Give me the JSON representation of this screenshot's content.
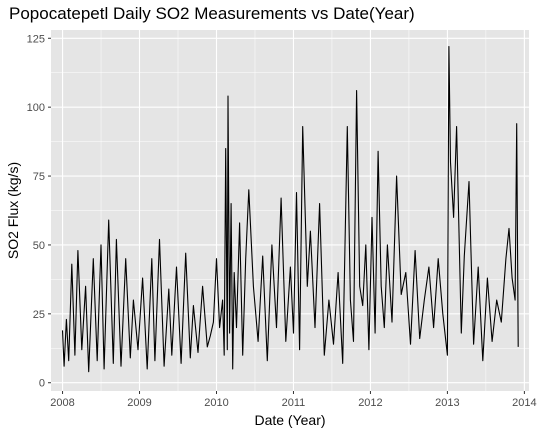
{
  "chart_data": {
    "type": "line",
    "title": "Popocatepetl Daily SO2 Measurements vs Date(Year)",
    "xlabel": "Date (Year)",
    "ylabel": "SO2 Flux (kg/s)",
    "xlim": [
      2007.85,
      2014.06
    ],
    "ylim": [
      -3,
      128
    ],
    "x_ticks": [
      2008,
      2009,
      2010,
      2011,
      2012,
      2013,
      2014
    ],
    "x_tick_labels": [
      "2008",
      "2009",
      "2010",
      "2011",
      "2012",
      "2013",
      "2014"
    ],
    "y_ticks": [
      0,
      25,
      50,
      75,
      100,
      125
    ],
    "y_tick_labels": [
      "0",
      "25",
      "50",
      "75",
      "100",
      "125"
    ],
    "grid": true,
    "background": "#e5e5e5",
    "grid_color": "#ffffff",
    "line_color": "#000000",
    "series": [
      {
        "x": [
          2008.0,
          2008.02,
          2008.05,
          2008.08,
          2008.12,
          2008.16,
          2008.2,
          2008.25,
          2008.3,
          2008.34,
          2008.4,
          2008.45,
          2008.5,
          2008.54,
          2008.6,
          2008.66,
          2008.7,
          2008.76,
          2008.82,
          2008.88,
          2008.92,
          2008.98,
          2009.04,
          2009.1,
          2009.16,
          2009.2,
          2009.26,
          2009.32,
          2009.38,
          2009.42,
          2009.48,
          2009.54,
          2009.6,
          2009.66,
          2009.7,
          2009.76,
          2009.82,
          2009.88,
          2009.92,
          2009.96,
          2010.0,
          2010.04,
          2010.08,
          2010.1,
          2010.12,
          2010.14,
          2010.15,
          2010.17,
          2010.19,
          2010.21,
          2010.23,
          2010.26,
          2010.3,
          2010.34,
          2010.38,
          2010.42,
          2010.48,
          2010.54,
          2010.6,
          2010.66,
          2010.72,
          2010.78,
          2010.84,
          2010.9,
          2010.96,
          2011.0,
          2011.04,
          2011.08,
          2011.12,
          2011.18,
          2011.22,
          2011.28,
          2011.34,
          2011.4,
          2011.46,
          2011.52,
          2011.58,
          2011.64,
          2011.7,
          2011.74,
          2011.78,
          2011.82,
          2011.86,
          2011.9,
          2011.94,
          2011.98,
          2012.02,
          2012.06,
          2012.1,
          2012.14,
          2012.18,
          2012.22,
          2012.28,
          2012.34,
          2012.4,
          2012.46,
          2012.52,
          2012.58,
          2012.64,
          2012.7,
          2012.76,
          2012.82,
          2012.88,
          2012.94,
          2013.0,
          2013.02,
          2013.04,
          2013.08,
          2013.12,
          2013.18,
          2013.22,
          2013.28,
          2013.34,
          2013.4,
          2013.46,
          2013.52,
          2013.58,
          2013.64,
          2013.7,
          2013.76,
          2013.8,
          2013.84,
          2013.88,
          2013.9,
          2013.92
        ],
        "y": [
          19,
          6,
          23,
          8,
          43,
          10,
          48,
          12,
          35,
          4,
          45,
          8,
          50,
          5,
          59,
          7,
          52,
          6,
          45,
          9,
          30,
          12,
          38,
          5,
          45,
          8,
          52,
          6,
          34,
          10,
          42,
          7,
          47,
          9,
          28,
          11,
          35,
          13,
          17,
          22,
          45,
          20,
          30,
          10,
          85,
          12,
          104,
          18,
          65,
          5,
          40,
          20,
          58,
          10,
          45,
          70,
          35,
          15,
          46,
          8,
          50,
          20,
          67,
          15,
          42,
          18,
          69,
          12,
          93,
          35,
          55,
          20,
          65,
          10,
          30,
          14,
          40,
          7,
          93,
          30,
          15,
          106,
          35,
          28,
          50,
          12,
          60,
          18,
          84,
          35,
          20,
          50,
          22,
          75,
          32,
          40,
          14,
          48,
          16,
          30,
          42,
          20,
          45,
          25,
          10,
          122,
          80,
          60,
          93,
          18,
          46,
          73,
          14,
          42,
          8,
          38,
          15,
          30,
          22,
          45,
          56,
          38,
          30,
          94,
          13
        ]
      }
    ]
  }
}
